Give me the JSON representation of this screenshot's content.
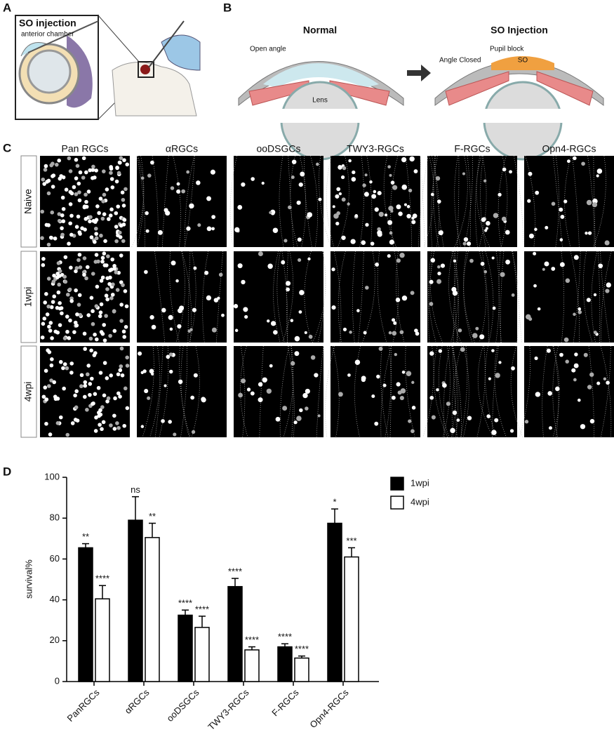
{
  "panels": {
    "a": {
      "letter": "A",
      "title": "SO injection",
      "label": "anterior chamber"
    },
    "b": {
      "letter": "B",
      "normal": "Normal",
      "so_injection": "SO Injection",
      "open_angle": "Open angle",
      "lens": "Lens",
      "pupil_block": "Pupil block",
      "angle_closed": "Angle Closed",
      "so": "SO"
    },
    "c": {
      "letter": "C",
      "columns": [
        "Pan RGCs",
        "αRGCs",
        "ooDSGCs",
        "TWY3-RGCs",
        "F-RGCs",
        "Opn4-RGCs"
      ],
      "rows": [
        "Naive",
        "1wpi",
        "4wpi"
      ]
    },
    "d": {
      "letter": "D"
    }
  },
  "chart_data": {
    "type": "bar",
    "ylabel": "survival%",
    "categories": [
      "PanRGCs",
      "αRGCs",
      "ooDSGCs",
      "TWY3-RGCs",
      "F-RGCs",
      "Opn4-RGCs"
    ],
    "series": [
      {
        "name": "1wpi",
        "color": "#000000",
        "values": [
          65.5,
          79,
          32.5,
          46.5,
          17,
          77.5
        ],
        "errors": [
          2,
          11.5,
          2.5,
          4,
          1.5,
          7
        ],
        "significance": [
          "**",
          "ns",
          "****",
          "****",
          "****",
          "*"
        ]
      },
      {
        "name": "4wpi",
        "color": "#ffffff",
        "values": [
          40.5,
          70.5,
          26.5,
          15.5,
          11.5,
          61
        ],
        "errors": [
          6.5,
          7,
          5.5,
          1.5,
          1,
          4.5
        ],
        "significance": [
          "****",
          "**",
          "****",
          "****",
          "****",
          "***"
        ]
      }
    ],
    "ylim": [
      0,
      100
    ],
    "yticks": [
      0,
      20,
      40,
      60,
      80,
      100
    ],
    "grid": false,
    "legend": "top-right"
  }
}
